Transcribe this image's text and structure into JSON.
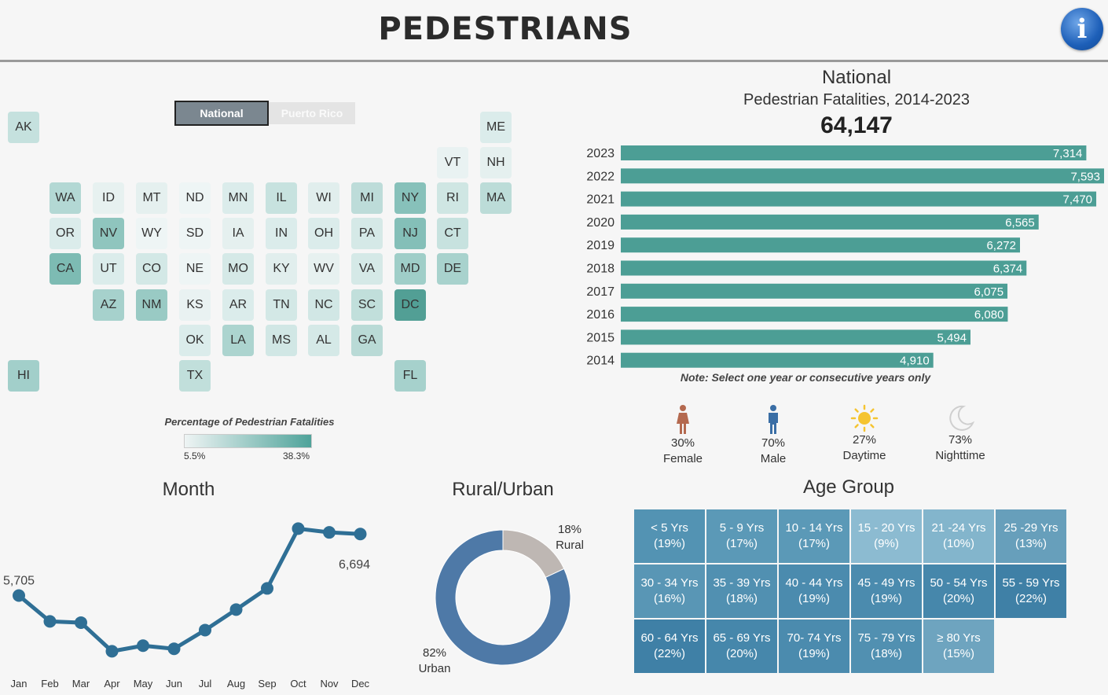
{
  "header": {
    "title": "PEDESTRIANS",
    "info_icon": "info-icon"
  },
  "toggle": {
    "national": "National",
    "puerto_rico": "Puerto Rico"
  },
  "states": [
    {
      "code": "AK",
      "color": "#c5e1de"
    },
    {
      "code": "ME",
      "color": "#dbeceb"
    },
    {
      "code": "VT",
      "color": "#e9f2f2"
    },
    {
      "code": "NH",
      "color": "#e5f0ef"
    },
    {
      "code": "WA",
      "color": "#b3d8d4"
    },
    {
      "code": "ID",
      "color": "#e7f1f0"
    },
    {
      "code": "MT",
      "color": "#e5f0ef"
    },
    {
      "code": "ND",
      "color": "#eef5f5"
    },
    {
      "code": "MN",
      "color": "#dbeceb"
    },
    {
      "code": "IL",
      "color": "#c7e2df"
    },
    {
      "code": "WI",
      "color": "#e1eeed"
    },
    {
      "code": "MI",
      "color": "#bddcd9"
    },
    {
      "code": "NY",
      "color": "#87c1ba"
    },
    {
      "code": "RI",
      "color": "#cfe6e3"
    },
    {
      "code": "MA",
      "color": "#bcdcd8"
    },
    {
      "code": "OR",
      "color": "#dbeceb"
    },
    {
      "code": "NV",
      "color": "#8fc5be"
    },
    {
      "code": "WY",
      "color": "#eef5f5"
    },
    {
      "code": "SD",
      "color": "#eef5f5"
    },
    {
      "code": "IA",
      "color": "#e5f0ef"
    },
    {
      "code": "IN",
      "color": "#dbeceb"
    },
    {
      "code": "OH",
      "color": "#dbeceb"
    },
    {
      "code": "PA",
      "color": "#d5e9e7"
    },
    {
      "code": "NJ",
      "color": "#84bfb8"
    },
    {
      "code": "CT",
      "color": "#c7e2df"
    },
    {
      "code": "CA",
      "color": "#7dbbb3"
    },
    {
      "code": "UT",
      "color": "#dbeceb"
    },
    {
      "code": "CO",
      "color": "#d3e8e6"
    },
    {
      "code": "NE",
      "color": "#eef5f5"
    },
    {
      "code": "MO",
      "color": "#d5e9e7"
    },
    {
      "code": "KY",
      "color": "#e1eeed"
    },
    {
      "code": "WV",
      "color": "#e7f1f0"
    },
    {
      "code": "VA",
      "color": "#d5e9e7"
    },
    {
      "code": "MD",
      "color": "#9fcec8"
    },
    {
      "code": "DE",
      "color": "#a8d2cd"
    },
    {
      "code": "AZ",
      "color": "#a6d1cc"
    },
    {
      "code": "NM",
      "color": "#99cac4"
    },
    {
      "code": "KS",
      "color": "#e9f2f2"
    },
    {
      "code": "AR",
      "color": "#dbeceb"
    },
    {
      "code": "TN",
      "color": "#d3e8e6"
    },
    {
      "code": "NC",
      "color": "#d1e7e5"
    },
    {
      "code": "SC",
      "color": "#c1dfdb"
    },
    {
      "code": "DC",
      "color": "#529f95"
    },
    {
      "code": "OK",
      "color": "#dbeceb"
    },
    {
      "code": "LA",
      "color": "#acd4cf"
    },
    {
      "code": "MS",
      "color": "#d1e7e5"
    },
    {
      "code": "AL",
      "color": "#d5e9e7"
    },
    {
      "code": "GA",
      "color": "#b9dad6"
    },
    {
      "code": "HI",
      "color": "#a2cfca"
    },
    {
      "code": "TX",
      "color": "#c1dfdb"
    },
    {
      "code": "FL",
      "color": "#a6d1cc"
    }
  ],
  "legend": {
    "title": "Percentage of Pedestrian Fatalities",
    "min": "5.5%",
    "max": "38.3%",
    "color_low": "#eef4f4",
    "color_high": "#4fa39a"
  },
  "national": {
    "title": "National",
    "subtitle": "Pedestrian Fatalities,  2014-2023",
    "total": "64,147",
    "note": "Note: Select one year or consecutive years only"
  },
  "demographics": [
    {
      "pct": "30%",
      "label": "Female",
      "icon": "female-icon"
    },
    {
      "pct": "70%",
      "label": "Male",
      "icon": "male-icon"
    },
    {
      "pct": "27%",
      "label": "Daytime",
      "icon": "sun-icon"
    },
    {
      "pct": "73%",
      "label": "Nighttime",
      "icon": "moon-icon"
    }
  ],
  "sections": {
    "month": "Month",
    "rural_urban": "Rural/Urban",
    "age_group": "Age Group"
  },
  "rural_urban": {
    "rural_pct": "18%",
    "rural_label": "Rural",
    "urban_pct": "82%",
    "urban_label": "Urban",
    "rural_color": "#beb7b3",
    "urban_color": "#4e79a7"
  },
  "age_groups": [
    {
      "label": "< 5 Yrs",
      "pct": "(19%)"
    },
    {
      "label": "5 - 9 Yrs",
      "pct": "(17%)"
    },
    {
      "label": "10 - 14 Yrs",
      "pct": "(17%)"
    },
    {
      "label": "15 - 20 Yrs",
      "pct": "(9%)"
    },
    {
      "label": "21 -24 Yrs",
      "pct": "(10%)"
    },
    {
      "label": "25 -29 Yrs",
      "pct": "(13%)"
    },
    {
      "label": "30 - 34 Yrs",
      "pct": "(16%)"
    },
    {
      "label": "35 - 39 Yrs",
      "pct": "(18%)"
    },
    {
      "label": "40 - 44 Yrs",
      "pct": "(19%)"
    },
    {
      "label": "45 - 49 Yrs",
      "pct": "(19%)"
    },
    {
      "label": "50 - 54 Yrs",
      "pct": "(20%)"
    },
    {
      "label": "55 - 59 Yrs",
      "pct": "(22%)"
    },
    {
      "label": "60 - 64 Yrs",
      "pct": "(22%)"
    },
    {
      "label": "65 - 69 Yrs",
      "pct": "(20%)"
    },
    {
      "label": "70- 74 Yrs",
      "pct": "(19%)"
    },
    {
      "label": "75 - 79 Yrs",
      "pct": "(18%)"
    },
    {
      "label": "≥ 80 Yrs",
      "pct": "(15%)"
    }
  ],
  "chart_data": [
    {
      "type": "bar",
      "orientation": "horizontal",
      "title": "Pedestrian Fatalities,  2014-2023",
      "categories": [
        "2023",
        "2022",
        "2021",
        "2020",
        "2019",
        "2018",
        "2017",
        "2016",
        "2015",
        "2014"
      ],
      "values": [
        7314,
        7593,
        7470,
        6565,
        6272,
        6374,
        6075,
        6080,
        5494,
        4910
      ],
      "labels": [
        "7,314",
        "7,593",
        "7,470",
        "6,565",
        "6,272",
        "6,374",
        "6,075",
        "6,080",
        "5,494",
        "4,910"
      ],
      "bar_color": "#4c9e95",
      "xlim": [
        0,
        7593
      ]
    },
    {
      "type": "line",
      "title": "Month",
      "x": [
        "Jan",
        "Feb",
        "Mar",
        "Apr",
        "May",
        "Jun",
        "Jul",
        "Aug",
        "Sep",
        "Oct",
        "Nov",
        "Dec"
      ],
      "values": [
        5705,
        5290,
        5270,
        4810,
        4900,
        4850,
        5150,
        5480,
        5820,
        6780,
        6720,
        6694
      ],
      "annotations": [
        {
          "x": "Jan",
          "label": "5,705"
        },
        {
          "x": "Dec",
          "label": "6,694"
        }
      ],
      "line_color": "#2f6f95",
      "ylim": [
        4600,
        7000
      ]
    },
    {
      "type": "pie",
      "title": "Rural/Urban",
      "categories": [
        "Rural",
        "Urban"
      ],
      "values": [
        18,
        82
      ]
    }
  ]
}
